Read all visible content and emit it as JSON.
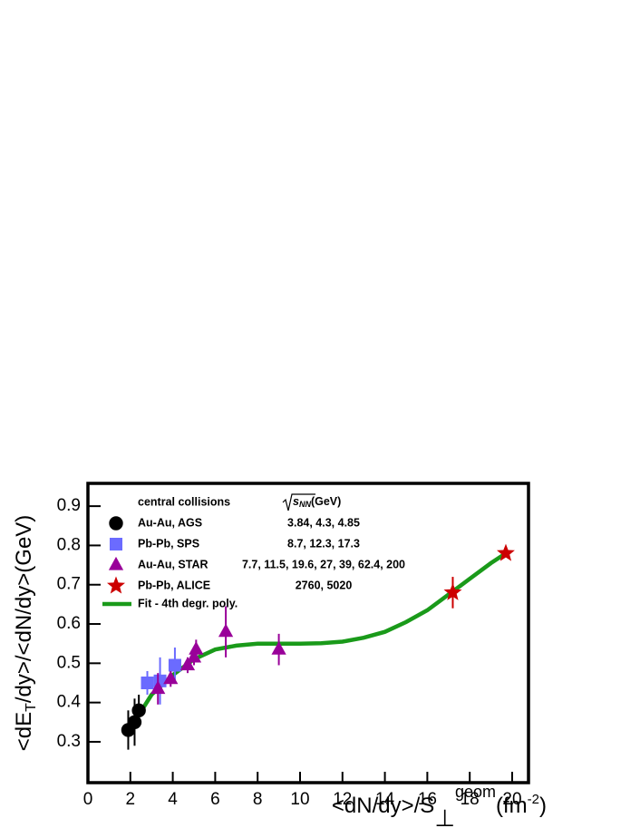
{
  "chart_data": {
    "type": "scatter",
    "x_label": [
      "<dN/dy>/S",
      "⊥",
      "geom",
      "(fm",
      "-2",
      ")"
    ],
    "y_label": [
      "<dE",
      "T",
      "/dy>/<dN/dy>(GeV)"
    ],
    "legend_header": "central collisions",
    "energy_header": [
      "s",
      "NN",
      "(GeV)"
    ],
    "xlim": [
      0,
      20.77
    ],
    "ylim": [
      0.196,
      0.958
    ],
    "xticks": [
      0,
      2,
      4,
      6,
      8,
      10,
      12,
      14,
      16,
      18,
      20
    ],
    "yticks": [
      0.3,
      0.4,
      0.5,
      0.6,
      0.7,
      0.8,
      0.9
    ],
    "series": [
      {
        "name": "Au-Au, AGS",
        "energies": "3.84, 4.3, 4.85",
        "color": "#000000",
        "marker": "circle",
        "x": [
          1.9,
          2.2,
          2.4
        ],
        "values": [
          0.33,
          0.35,
          0.38
        ],
        "errors": [
          0.05,
          0.06,
          0.04
        ]
      },
      {
        "name": "Pb-Pb, SPS",
        "energies": "8.7, 12.3, 17.3",
        "color": "#6b6bff",
        "marker": "square",
        "x": [
          2.8,
          3.4,
          4.1
        ],
        "values": [
          0.45,
          0.455,
          0.495
        ],
        "errors": [
          0.03,
          0.06,
          0.045
        ]
      },
      {
        "name": "Au-Au, STAR",
        "energies": "7.7, 11.5, 19.6, 27, 39, 62.4, 200",
        "color": "#990099",
        "marker": "triangle",
        "x": [
          3.3,
          3.9,
          4.7,
          5.0,
          5.1,
          6.5,
          9.0
        ],
        "values": [
          0.435,
          0.46,
          0.495,
          0.515,
          0.535,
          0.58,
          0.535
        ],
        "errors": [
          0.04,
          0.02,
          0.02,
          0.02,
          0.025,
          0.065,
          0.04
        ]
      },
      {
        "name": "Pb-Pb, ALICE",
        "energies": "2760, 5020",
        "color": "#cc0000",
        "marker": "star",
        "x": [
          17.2,
          19.7
        ],
        "values": [
          0.68,
          0.78
        ],
        "errors": [
          0.04,
          0.01
        ]
      }
    ],
    "fit": {
      "name": "Fit - 4th degr. poly.",
      "color": "#1a9a1a",
      "x": [
        2.3,
        3,
        4,
        5,
        6,
        7,
        8,
        9,
        10,
        11,
        12,
        13,
        14,
        15,
        16,
        17,
        18,
        19,
        19.7
      ],
      "values": [
        0.36,
        0.42,
        0.47,
        0.51,
        0.535,
        0.545,
        0.55,
        0.55,
        0.55,
        0.551,
        0.555,
        0.565,
        0.58,
        0.605,
        0.635,
        0.675,
        0.715,
        0.755,
        0.78
      ]
    }
  }
}
